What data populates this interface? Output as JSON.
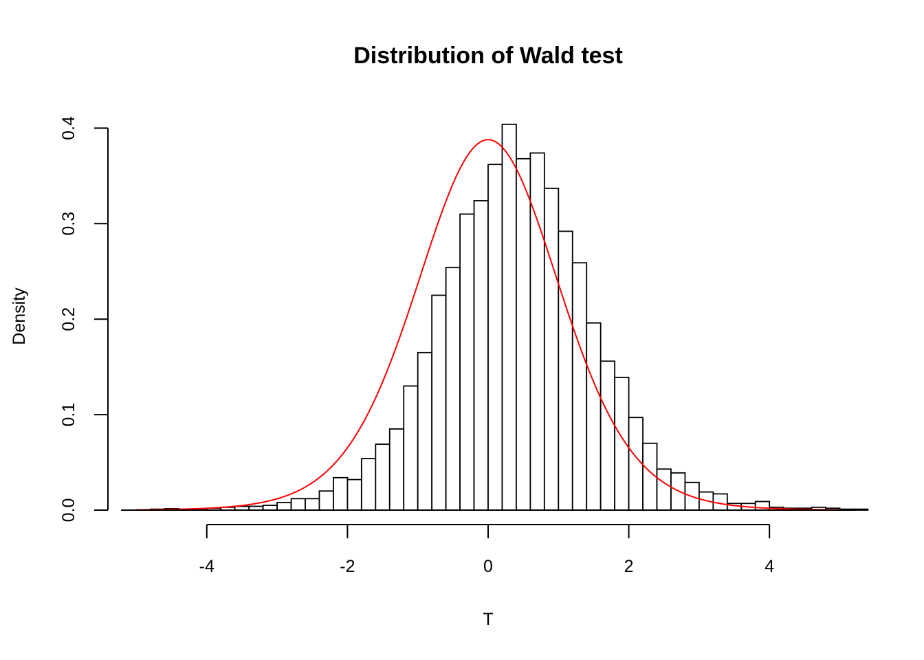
{
  "chart_data": {
    "type": "bar",
    "subtype": "histogram",
    "title": "Distribution of Wald test",
    "xlabel": "T",
    "ylabel": "Density",
    "xlim": [
      -5.2,
      5.2
    ],
    "ylim": [
      0,
      0.4
    ],
    "x_ticks": [
      -4,
      -2,
      0,
      2,
      4
    ],
    "y_ticks": [
      0.0,
      0.1,
      0.2,
      0.3,
      0.4
    ],
    "y_tick_labels": [
      "0.0",
      "0.1",
      "0.2",
      "0.3",
      "0.4"
    ],
    "x_tick_labels": [
      "-4",
      "-2",
      "0",
      "2",
      "4"
    ],
    "bin_width": 0.2,
    "bin_start": -5.2,
    "values": [
      0.0,
      0.0,
      0.001,
      0.0015,
      0.001,
      0.0015,
      0.002,
      0.003,
      0.004,
      0.004,
      0.005,
      0.008,
      0.012,
      0.012,
      0.02,
      0.034,
      0.032,
      0.054,
      0.069,
      0.085,
      0.13,
      0.165,
      0.225,
      0.254,
      0.31,
      0.324,
      0.362,
      0.404,
      0.368,
      0.374,
      0.337,
      0.292,
      0.259,
      0.196,
      0.156,
      0.139,
      0.097,
      0.07,
      0.043,
      0.039,
      0.029,
      0.019,
      0.017,
      0.007,
      0.007,
      0.009,
      0.003,
      0.002,
      0.002,
      0.003,
      0.002,
      0.001,
      0.001
    ],
    "curve": {
      "color": "#ff0000",
      "peak_density": 0.388,
      "center": 0.0,
      "x_range": [
        -5.0,
        5.0
      ]
    },
    "grid": false,
    "legend": "none"
  }
}
